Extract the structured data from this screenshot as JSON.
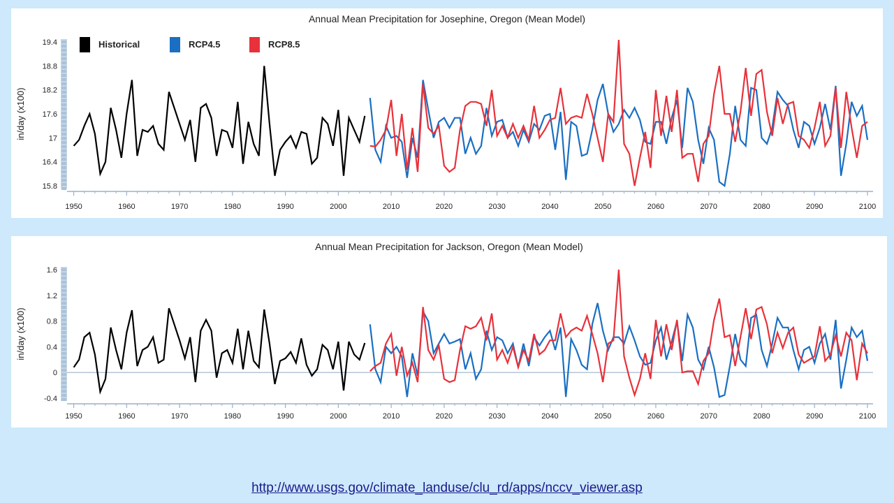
{
  "colors": {
    "historical": "#000000",
    "rcp45": "#1a6fc2",
    "rcp85": "#e8313a",
    "axis": "#9ab0c8",
    "background": "#cde9fb"
  },
  "source_link": "http://www.usgs.gov/climate_landuse/clu_rd/apps/nccv_viewer.asp",
  "chart_data": [
    {
      "type": "line",
      "title": "Annual Mean Precipitation for Josephine, Oregon (Mean Model)",
      "xlabel": "",
      "ylabel": "in/day (x100)",
      "xlim": [
        1949,
        2100
      ],
      "ylim": [
        15.8,
        19.4
      ],
      "yticks": [
        "19.4",
        "18.8",
        "18.2",
        "17.6",
        "17",
        "16.4",
        "15.8"
      ],
      "ytick_values": [
        19.4,
        18.8,
        18.2,
        17.6,
        17.0,
        16.4,
        15.8
      ],
      "xticks": [
        "1950",
        "1960",
        "1970",
        "1980",
        "1990",
        "2000",
        "2010",
        "2020",
        "2030",
        "2040",
        "2050",
        "2060",
        "2070",
        "2080",
        "2090",
        "2100"
      ],
      "xtick_values": [
        1950,
        1960,
        1970,
        1980,
        1990,
        2000,
        2010,
        2020,
        2030,
        2040,
        2050,
        2060,
        2070,
        2080,
        2090,
        2100
      ],
      "legend": [
        "Historical",
        "RCP4.5",
        "RCP8.5"
      ],
      "legend_position": "top-left",
      "grid": false,
      "series": [
        {
          "name": "Historical",
          "x_start": 1950,
          "values": [
            16.8,
            16.95,
            17.3,
            17.6,
            17.1,
            16.1,
            16.4,
            17.75,
            17.2,
            16.5,
            17.6,
            18.45,
            16.55,
            17.2,
            17.15,
            17.3,
            16.85,
            16.7,
            18.15,
            17.75,
            17.35,
            16.95,
            17.45,
            16.4,
            17.75,
            17.85,
            17.5,
            16.55,
            17.2,
            17.15,
            16.75,
            17.9,
            16.35,
            17.4,
            16.85,
            16.55,
            18.8,
            17.35,
            16.05,
            16.7,
            16.9,
            17.05,
            16.75,
            17.15,
            17.1,
            16.35,
            16.5,
            17.5,
            17.35,
            16.8,
            17.7,
            16.05,
            17.5,
            17.2,
            16.9,
            17.55
          ]
        },
        {
          "name": "RCP4.5",
          "x_start": 2006,
          "values": [
            18.0,
            16.7,
            16.4,
            17.3,
            17.0,
            17.05,
            16.9,
            16.0,
            17.0,
            16.5,
            18.45,
            17.7,
            17.0,
            17.4,
            17.5,
            17.25,
            17.5,
            17.5,
            16.6,
            17.0,
            16.6,
            16.8,
            17.75,
            17.05,
            17.4,
            17.45,
            17.0,
            17.15,
            16.8,
            17.2,
            16.9,
            17.35,
            17.2,
            17.55,
            17.6,
            16.7,
            17.65,
            15.95,
            17.4,
            17.3,
            16.55,
            16.6,
            17.2,
            17.95,
            18.35,
            17.6,
            17.15,
            17.35,
            17.7,
            17.5,
            17.75,
            17.45,
            16.9,
            16.85,
            17.4,
            17.4,
            16.85,
            17.5,
            17.95,
            16.75,
            18.25,
            17.9,
            16.95,
            16.35,
            17.25,
            16.95,
            15.9,
            15.8,
            16.6,
            17.8,
            16.95,
            16.8,
            18.25,
            18.2,
            17.0,
            16.85,
            17.25,
            18.15,
            17.95,
            17.8,
            17.2,
            16.75,
            17.4,
            17.3,
            16.85,
            17.25,
            17.85,
            17.2,
            18.3,
            16.05,
            16.85,
            17.9,
            17.55,
            17.8,
            16.95
          ]
        },
        {
          "name": "RCP8.5",
          "x_start": 2006,
          "values": [
            16.8,
            16.78,
            16.95,
            17.2,
            17.95,
            16.55,
            17.6,
            16.2,
            17.25,
            16.15,
            18.35,
            17.25,
            17.1,
            17.3,
            16.3,
            16.15,
            16.25,
            17.2,
            17.8,
            17.9,
            17.9,
            17.85,
            17.3,
            18.2,
            17.05,
            17.3,
            17.0,
            17.35,
            17.0,
            17.3,
            16.95,
            17.8,
            17.0,
            17.2,
            17.45,
            17.5,
            18.25,
            17.35,
            17.5,
            17.55,
            17.5,
            18.1,
            17.6,
            17.0,
            16.4,
            17.6,
            17.4,
            19.45,
            16.85,
            16.6,
            15.8,
            16.5,
            17.15,
            16.25,
            18.2,
            17.05,
            18.05,
            17.15,
            18.2,
            16.5,
            16.6,
            16.6,
            15.9,
            16.85,
            17.05,
            18.1,
            18.8,
            17.6,
            17.6,
            16.9,
            17.65,
            18.75,
            17.55,
            18.6,
            18.7,
            17.65,
            17.05,
            18.0,
            17.35,
            17.85,
            17.9,
            17.05,
            16.95,
            16.75,
            17.25,
            17.9,
            16.8,
            17.05,
            18.25,
            16.75,
            18.15,
            17.25,
            16.5,
            17.3,
            17.4
          ]
        }
      ]
    },
    {
      "type": "line",
      "title": "Annual Mean Precipitation for Jackson, Oregon (Mean Model)",
      "xlabel": "",
      "ylabel": "in/day (x100)",
      "xlim": [
        1949,
        2100
      ],
      "ylim": [
        -0.4,
        1.6
      ],
      "yticks": [
        "1.6",
        "1.2",
        "0.8",
        "0.4",
        "0",
        "-0.4"
      ],
      "ytick_values": [
        1.6,
        1.2,
        0.8,
        0.4,
        0.0,
        -0.4
      ],
      "xticks": [
        "1950",
        "1960",
        "1970",
        "1980",
        "1990",
        "2000",
        "2010",
        "2020",
        "2030",
        "2040",
        "2050",
        "2060",
        "2070",
        "2080",
        "2090",
        "2100"
      ],
      "xtick_values": [
        1950,
        1960,
        1970,
        1980,
        1990,
        2000,
        2010,
        2020,
        2030,
        2040,
        2050,
        2060,
        2070,
        2080,
        2090,
        2100
      ],
      "legend": [],
      "grid": false,
      "series": [
        {
          "name": "Historical",
          "x_start": 1950,
          "values": [
            0.08,
            0.2,
            0.55,
            0.62,
            0.28,
            -0.3,
            -0.1,
            0.7,
            0.35,
            0.05,
            0.62,
            0.97,
            0.1,
            0.35,
            0.4,
            0.55,
            0.15,
            0.2,
            1.0,
            0.75,
            0.5,
            0.22,
            0.55,
            -0.15,
            0.65,
            0.82,
            0.65,
            -0.08,
            0.3,
            0.35,
            0.15,
            0.68,
            0.05,
            0.65,
            0.18,
            0.08,
            0.98,
            0.45,
            -0.18,
            0.18,
            0.22,
            0.32,
            0.15,
            0.53,
            0.12,
            -0.05,
            0.05,
            0.43,
            0.35,
            0.05,
            0.48,
            -0.28,
            0.48,
            0.28,
            0.2,
            0.46
          ]
        },
        {
          "name": "RCP4.5",
          "x_start": 2006,
          "values": [
            0.75,
            0.05,
            -0.15,
            0.4,
            0.3,
            0.4,
            0.25,
            -0.38,
            0.3,
            -0.05,
            0.95,
            0.8,
            0.3,
            0.45,
            0.6,
            0.45,
            0.48,
            0.52,
            0.05,
            0.3,
            -0.1,
            0.05,
            0.65,
            0.35,
            0.55,
            0.5,
            0.3,
            0.45,
            0.08,
            0.45,
            0.1,
            0.55,
            0.42,
            0.55,
            0.65,
            0.35,
            0.7,
            -0.38,
            0.52,
            0.35,
            0.12,
            0.05,
            0.75,
            1.08,
            0.65,
            0.35,
            0.55,
            0.55,
            0.45,
            0.72,
            0.5,
            0.25,
            0.12,
            0.15,
            0.5,
            0.7,
            0.2,
            0.48,
            0.8,
            0.18,
            0.9,
            0.7,
            0.2,
            0.05,
            0.4,
            0.08,
            -0.38,
            -0.35,
            0.1,
            0.6,
            0.2,
            0.1,
            0.85,
            0.9,
            0.35,
            0.1,
            0.45,
            0.85,
            0.7,
            0.7,
            0.35,
            0.05,
            0.35,
            0.4,
            0.15,
            0.45,
            0.6,
            0.2,
            0.82,
            -0.25,
            0.2,
            0.7,
            0.55,
            0.65,
            0.18
          ]
        },
        {
          "name": "RCP8.5",
          "x_start": 2006,
          "values": [
            0.02,
            0.1,
            0.15,
            0.45,
            0.6,
            -0.05,
            0.4,
            -0.05,
            0.15,
            -0.15,
            1.02,
            0.35,
            0.2,
            0.42,
            -0.1,
            -0.15,
            -0.12,
            0.35,
            0.72,
            0.68,
            0.72,
            0.85,
            0.5,
            0.92,
            0.2,
            0.35,
            0.15,
            0.4,
            0.08,
            0.35,
            0.18,
            0.6,
            0.28,
            0.35,
            0.5,
            0.5,
            0.92,
            0.55,
            0.65,
            0.7,
            0.65,
            0.88,
            0.6,
            0.3,
            -0.15,
            0.45,
            0.5,
            1.6,
            0.25,
            -0.08,
            -0.35,
            -0.1,
            0.3,
            -0.1,
            0.82,
            0.25,
            0.75,
            0.35,
            0.82,
            0.0,
            0.02,
            0.02,
            -0.18,
            0.18,
            0.3,
            0.82,
            1.15,
            0.55,
            0.58,
            0.1,
            0.55,
            1.0,
            0.52,
            0.98,
            1.02,
            0.75,
            0.3,
            0.62,
            0.38,
            0.62,
            0.7,
            0.28,
            0.15,
            0.2,
            0.25,
            0.72,
            0.18,
            0.28,
            0.58,
            0.25,
            0.62,
            0.5,
            -0.12,
            0.45,
            0.3
          ]
        }
      ]
    }
  ]
}
